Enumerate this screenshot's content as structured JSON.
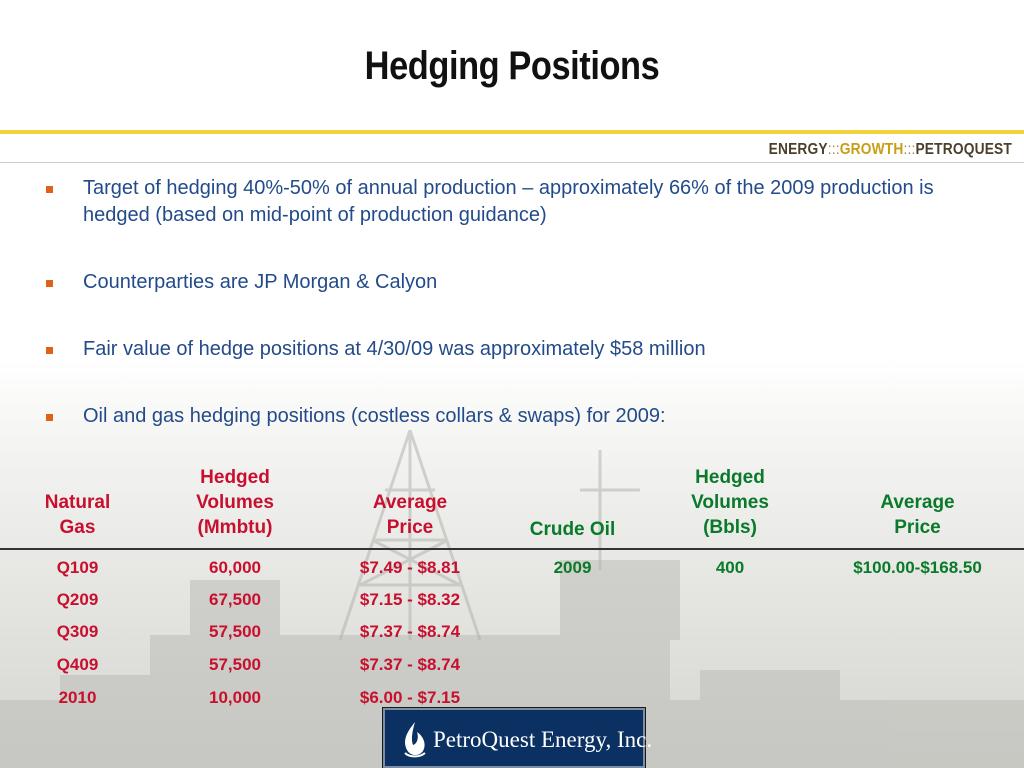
{
  "slide": {
    "title": "Hedging Positions",
    "tagline": {
      "part1": "ENERGY",
      "sep1": ":::",
      "part2": "GROWTH",
      "sep2": ":::",
      "part3": "PETROQUEST"
    },
    "bullets": [
      "Target of hedging 40%-50% of annual production – approximately 66% of the 2009 production is hedged (based on mid-point of production guidance)",
      "Counterparties are JP Morgan & Calyon",
      "Fair value of hedge positions at 4/30/09 was approximately $58 million",
      "Oil and gas hedging positions (costless collars & swaps) for 2009:"
    ]
  },
  "table": {
    "gas_headers": {
      "period": [
        "Natural",
        "Gas"
      ],
      "volume": [
        "Hedged",
        "Volumes",
        "(Mmbtu)"
      ],
      "price": [
        "Average",
        "Price"
      ]
    },
    "oil_headers": {
      "period": [
        "Crude Oil"
      ],
      "volume": [
        "Hedged",
        "Volumes",
        "(Bbls)"
      ],
      "price": [
        "Average",
        "Price"
      ]
    },
    "gas_rows": [
      {
        "period": "Q109",
        "volume": "60,000",
        "price": "$7.49 - $8.81"
      },
      {
        "period": "Q209",
        "volume": "67,500",
        "price": "$7.15 - $8.32"
      },
      {
        "period": "Q309",
        "volume": "57,500",
        "price": "$7.37 - $8.74"
      },
      {
        "period": "Q409",
        "volume": "57,500",
        "price": "$7.37 - $8.74"
      },
      {
        "period": "2010",
        "volume": "10,000",
        "price": "$6.00 - $7.15"
      }
    ],
    "oil_rows": [
      {
        "period": "2009",
        "volume": "400",
        "price": "$100.00-$168.50"
      }
    ]
  },
  "logo": {
    "text": "PetroQuest Energy, Inc."
  },
  "colors": {
    "gas": "#c8102e",
    "oil": "#0a7a2a",
    "bullet_text": "#234b8a",
    "bullet_marker": "#e0611a",
    "accent_rule": "#f2d23a"
  }
}
